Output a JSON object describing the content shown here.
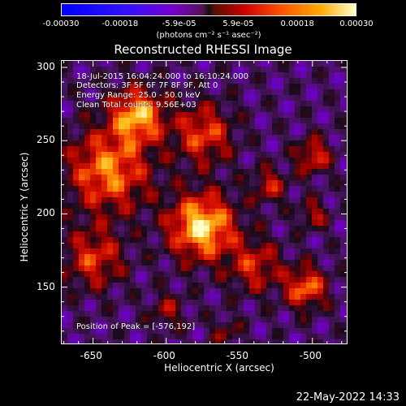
{
  "colorbar": {
    "ticks": [
      "-0.00030",
      "-0.00018",
      "-5.9e-05",
      "5.9e-05",
      "0.00018",
      "0.00030"
    ],
    "range": [
      -0.0003,
      0.0003
    ],
    "unit_label": "(photons cm⁻² s⁻¹ asec⁻²)",
    "colors": [
      "#0000ff",
      "#7700cc",
      "#111111",
      "#cc0000",
      "#ff5500",
      "#ffaa00",
      "#ffffcc"
    ]
  },
  "chart_data": {
    "type": "heatmap",
    "title": "Reconstructed RHESSI Image",
    "xlabel": "Heliocentric X (arcsec)",
    "ylabel": "Heliocentric Y (arcsec)",
    "xlim": [
      -672,
      -476
    ],
    "ylim": [
      111,
      305
    ],
    "xticks": [
      -650,
      -600,
      -550,
      -500
    ],
    "yticks": [
      150,
      200,
      250,
      300
    ],
    "colormap": "blue-purple-black-red-yellow-white",
    "peak": [
      -576,
      192
    ]
  },
  "annotations": {
    "time_range": "18-Jul-2015 16:04:24.000 to 16:10:24.000",
    "detectors": "Detectors: 3F 5F 6F 7F 8F 9F, Att 0",
    "energy": "Energy Range: 25.0 - 50.0 keV",
    "clean": "Clean     Total counts: 9.56E+03",
    "peak_text": "Position of Peak = [-576,192]"
  },
  "footer": {
    "date": "22-May-2022 14:33"
  }
}
